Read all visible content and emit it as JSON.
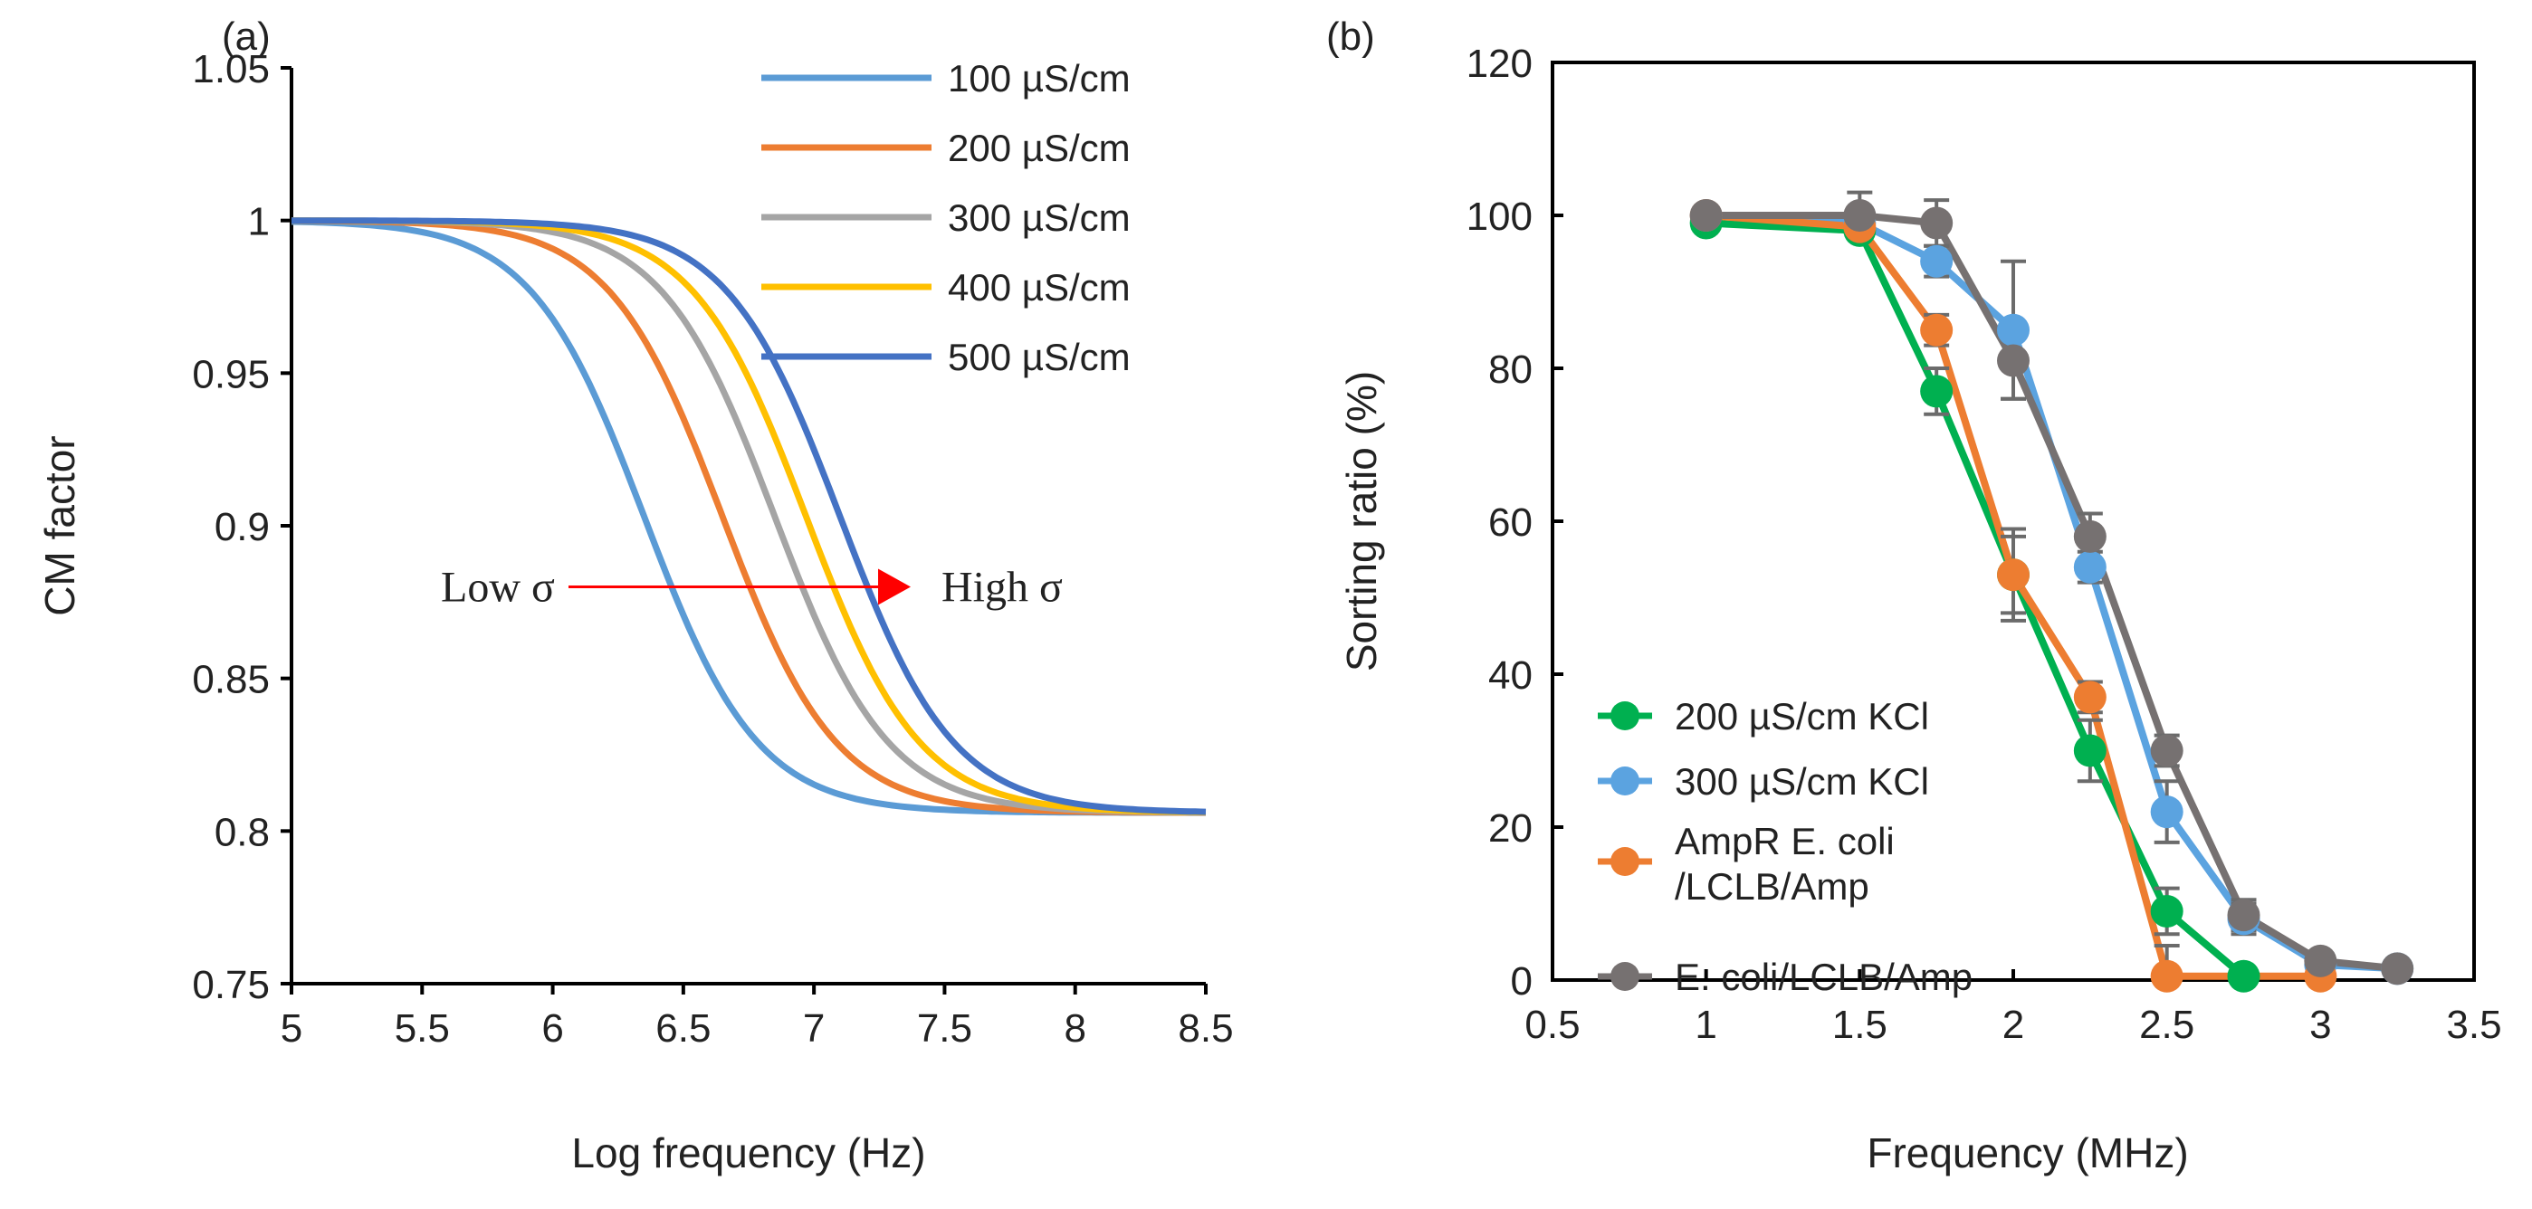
{
  "chart_data": [
    {
      "panel_label": "(a)",
      "type": "line",
      "title": "",
      "xlabel": "Log frequency (Hz)",
      "ylabel": "CM factor",
      "xlim": [
        5,
        8.5
      ],
      "ylim": [
        0.75,
        1.05
      ],
      "xticks": [
        "5",
        "5.5",
        "6",
        "6.5",
        "7",
        "7.5",
        "8",
        "8.5"
      ],
      "yticks": [
        "0.75",
        "0.8",
        "0.85",
        "0.9",
        "0.95",
        "1",
        "1.05"
      ],
      "grid": false,
      "legend_position": "top-right",
      "model": {
        "high_value": 1.0,
        "low_value": 0.806,
        "description": "sigmoidal transition vs log frequency"
      },
      "series": [
        {
          "name": "100 µS/cm",
          "color": "#5B9BD5",
          "midpoint_log_hz": 6.35
        },
        {
          "name": "200 µS/cm",
          "color": "#ED7D31",
          "midpoint_log_hz": 6.65
        },
        {
          "name": "300 µS/cm",
          "color": "#A5A5A5",
          "midpoint_log_hz": 6.85
        },
        {
          "name": "400 µS/cm",
          "color": "#FFC000",
          "midpoint_log_hz": 6.97
        },
        {
          "name": "500 µS/cm",
          "color": "#4472C4",
          "midpoint_log_hz": 7.1
        }
      ],
      "annotation": {
        "left": "Low σ",
        "right": "High σ",
        "arrow_color": "#FF0000",
        "y": 0.88,
        "x_from": 6.6,
        "x_to": 7.35
      }
    },
    {
      "panel_label": "(b)",
      "type": "line",
      "title": "",
      "xlabel": "Frequency (MHz)",
      "ylabel": "Sorting ratio (%)",
      "xlim": [
        0.5,
        3.5
      ],
      "ylim": [
        0,
        120
      ],
      "xticks": [
        "0.5",
        "1",
        "1.5",
        "2",
        "2.5",
        "3",
        "3.5"
      ],
      "yticks": [
        "0",
        "20",
        "40",
        "60",
        "80",
        "100",
        "120"
      ],
      "grid": false,
      "legend_position": "bottom-left",
      "series": [
        {
          "name": "200 µS/cm KCl",
          "color": "#00B050",
          "x": [
            1,
            1.5,
            1.75,
            2,
            2.25,
            2.5,
            2.75
          ],
          "y": [
            99,
            98,
            77,
            53,
            30,
            9,
            0.5
          ],
          "err": [
            1,
            1,
            3,
            5,
            4,
            3,
            0.5
          ]
        },
        {
          "name": "300 µS/cm KCl",
          "color": "#5BA3E0",
          "x": [
            1,
            1.5,
            1.75,
            2,
            2.25,
            2.5,
            2.75,
            3,
            3.25
          ],
          "y": [
            100,
            99,
            94,
            85,
            54,
            22,
            8,
            2,
            1.5
          ],
          "err": [
            1,
            2,
            2,
            9,
            2,
            4,
            2,
            1,
            1
          ]
        },
        {
          "name": "AmpR E. coli /LCLB/Amp",
          "name_lines": [
            "AmpR E. coli",
            "/LCLB/Amp"
          ],
          "color": "#ED7D31",
          "x": [
            1,
            1.5,
            1.75,
            2,
            2.25,
            2.5,
            3
          ],
          "y": [
            100,
            98.5,
            85,
            53,
            37,
            0.5,
            0.5
          ],
          "err": [
            0.5,
            1,
            2,
            6,
            2,
            4,
            0.5
          ]
        },
        {
          "name": "E. coli/LCLB/Amp",
          "color": "#767171",
          "x": [
            1,
            1.5,
            1.75,
            2,
            2.25,
            2.5,
            2.75,
            3,
            3.25
          ],
          "y": [
            100,
            100,
            99,
            81,
            58,
            30,
            8.5,
            2.5,
            1.5
          ],
          "err": [
            0.5,
            3,
            3,
            5,
            3,
            2,
            2,
            1,
            1
          ]
        }
      ]
    }
  ]
}
